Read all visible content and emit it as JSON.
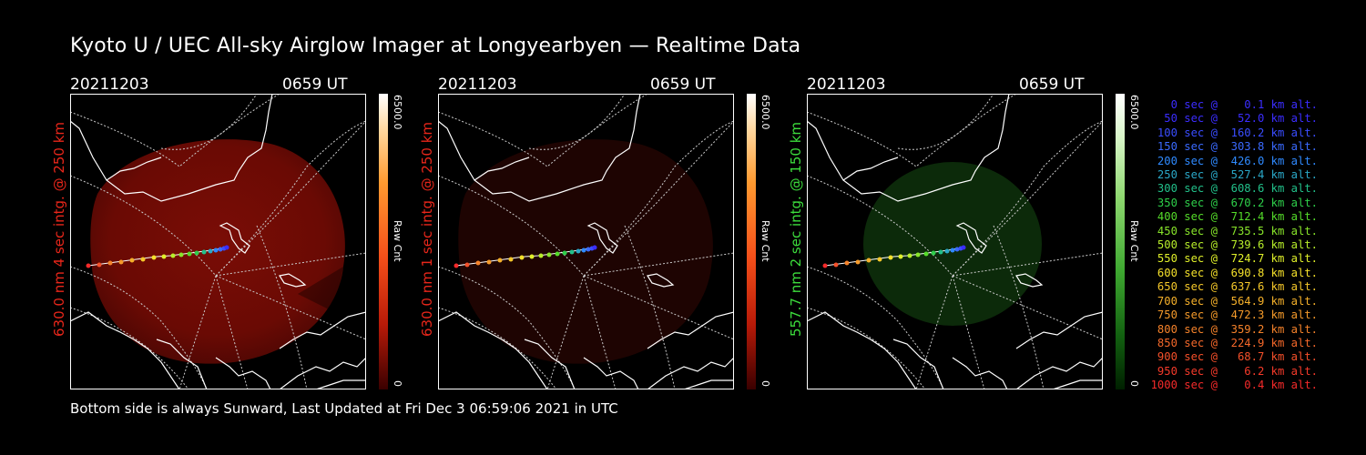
{
  "title": "Kyoto U / UEC All-sky Airglow Imager at Longyearbyen — Realtime Data",
  "footer": "Bottom side is always Sunward, Last Updated at Fri Dec  3 06:59:06 2021 in UTC",
  "colors": {
    "red_axis": "#ff2a1a",
    "green_axis": "#3cdc3c"
  },
  "panels": [
    {
      "date": "20211203",
      "time": "0659 UT",
      "ylabel": "630.0 nm 4 sec intg. @ 250 km",
      "ylabel_color": "#e8261a",
      "colorbar_max": "6500.0",
      "colorbar_min": "0",
      "colorbar_label": "Raw Cnt",
      "colorbar_scheme": "red",
      "intensity": "bright"
    },
    {
      "date": "20211203",
      "time": "0659 UT",
      "ylabel": "630.0 nm 1 sec intg. @ 250 km",
      "ylabel_color": "#e8261a",
      "colorbar_max": "6500.0",
      "colorbar_min": "0",
      "colorbar_label": "Raw Cnt",
      "colorbar_scheme": "red",
      "intensity": "dim"
    },
    {
      "date": "20211203",
      "time": "0659 UT",
      "ylabel": "557.7 nm 2 sec intg. @ 150 km",
      "ylabel_color": "#3cdc3c",
      "colorbar_max": "6500.0",
      "colorbar_min": "0",
      "colorbar_label": "Raw Cnt",
      "colorbar_scheme": "green",
      "intensity": "dim-green"
    }
  ],
  "legend": [
    {
      "text": "   0 sec @    0.1 km alt.",
      "color": "#3b2dff"
    },
    {
      "text": "  50 sec @   52.0 km alt.",
      "color": "#3b2dff"
    },
    {
      "text": " 100 sec @  160.2 km alt.",
      "color": "#3a4dff"
    },
    {
      "text": " 150 sec @  303.8 km alt.",
      "color": "#3a6aff"
    },
    {
      "text": " 200 sec @  426.0 km alt.",
      "color": "#2f8aff"
    },
    {
      "text": " 250 sec @  527.4 km alt.",
      "color": "#2aa8c8"
    },
    {
      "text": " 300 sec @  608.6 km alt.",
      "color": "#22c08a"
    },
    {
      "text": " 350 sec @  670.2 km alt.",
      "color": "#2ecf4a"
    },
    {
      "text": " 400 sec @  712.4 km alt.",
      "color": "#55dc2a"
    },
    {
      "text": " 450 sec @  735.5 km alt.",
      "color": "#88e52a"
    },
    {
      "text": " 500 sec @  739.6 km alt.",
      "color": "#b8ee2a"
    },
    {
      "text": " 550 sec @  724.7 km alt.",
      "color": "#e0f02a"
    },
    {
      "text": " 600 sec @  690.8 km alt.",
      "color": "#f4e02a"
    },
    {
      "text": " 650 sec @  637.6 km alt.",
      "color": "#f5c82a"
    },
    {
      "text": " 700 sec @  564.9 km alt.",
      "color": "#f5b02a"
    },
    {
      "text": " 750 sec @  472.3 km alt.",
      "color": "#f59a2a"
    },
    {
      "text": " 800 sec @  359.2 km alt.",
      "color": "#f5822a"
    },
    {
      "text": " 850 sec @  224.9 km alt.",
      "color": "#f5682a"
    },
    {
      "text": " 900 sec @   68.7 km alt.",
      "color": "#f5502a"
    },
    {
      "text": " 950 sec @    6.2 km alt.",
      "color": "#f53a2a"
    },
    {
      "text": "1000 sec @    0.4 km alt.",
      "color": "#f52a2a"
    }
  ]
}
